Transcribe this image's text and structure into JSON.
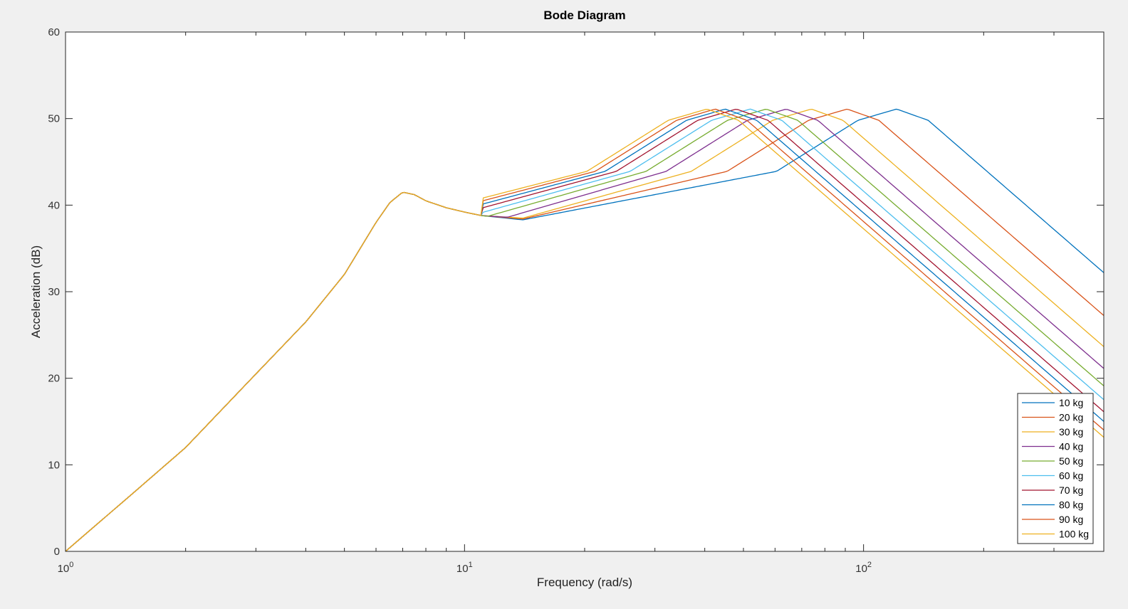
{
  "chart_data": {
    "type": "line",
    "title": "Bode Diagram",
    "xlabel": "Frequency  (rad/s)",
    "ylabel": "Acceleration (dB)",
    "xscale": "log",
    "xlim": [
      1,
      400
    ],
    "ylim": [
      0,
      60
    ],
    "x_ticks": [
      {
        "value": 1,
        "base": "10",
        "exp": "0"
      },
      {
        "value": 10,
        "base": "10",
        "exp": "1"
      },
      {
        "value": 100,
        "base": "10",
        "exp": "2"
      }
    ],
    "y_ticks": [
      "0",
      "10",
      "20",
      "30",
      "40",
      "50",
      "60"
    ],
    "grid": false,
    "legend_position": "bottom-right",
    "base_curve": {
      "x": [
        1,
        1.5,
        2,
        3,
        4,
        5,
        6,
        6.5,
        7,
        7.5,
        8,
        9,
        10,
        11
      ],
      "y": [
        0,
        7,
        12,
        20.5,
        26.5,
        32,
        38,
        40.3,
        41.5,
        41.2,
        40.5,
        39.7,
        39.2,
        38.8
      ]
    },
    "series": [
      {
        "name": "10 kg",
        "color": "#0072BD",
        "peak_x": 121,
        "valley_y": 38.3
      },
      {
        "name": "20 kg",
        "color": "#D95319",
        "peak_x": 91,
        "valley_y": 38.4
      },
      {
        "name": "30 kg",
        "color": "#EDB120",
        "peak_x": 74,
        "valley_y": 38.5
      },
      {
        "name": "40 kg",
        "color": "#7E2F8E",
        "peak_x": 64,
        "valley_y": 38.6
      },
      {
        "name": "50 kg",
        "color": "#77AC30",
        "peak_x": 57,
        "valley_y": 38.7
      },
      {
        "name": "60 kg",
        "color": "#4DBEEE",
        "peak_x": 52,
        "valley_y": 38.8
      },
      {
        "name": "70 kg",
        "color": "#A2142F",
        "peak_x": 48,
        "valley_y": 38.9
      },
      {
        "name": "80 kg",
        "color": "#0072BD",
        "peak_x": 45,
        "valley_y": 39.0
      },
      {
        "name": "90 kg",
        "color": "#D95319",
        "peak_x": 42.5,
        "valley_y": 39.1
      },
      {
        "name": "100 kg",
        "color": "#EDB120",
        "peak_x": 40.5,
        "valley_y": 39.2
      }
    ],
    "peak_y": 51.1,
    "rolloff_db_per_decade": -40
  }
}
